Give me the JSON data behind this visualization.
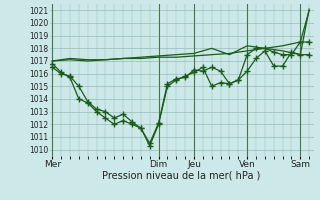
{
  "xlabel": "Pression niveau de la mer( hPa )",
  "background_color": "#cce8e8",
  "grid_color": "#99bbbb",
  "line_color": "#1a5c1a",
  "ylim": [
    1009.5,
    1021.5
  ],
  "yticks": [
    1010,
    1011,
    1012,
    1013,
    1014,
    1015,
    1016,
    1017,
    1018,
    1019,
    1020,
    1021
  ],
  "day_labels": [
    "Mer",
    "Dim",
    "Jeu",
    "Ven",
    "Sam"
  ],
  "day_positions": [
    0,
    12,
    16,
    22,
    28
  ],
  "xlim": [
    -0.3,
    29.5
  ],
  "series1_x": [
    0,
    1,
    2,
    3,
    4,
    5,
    6,
    7,
    8,
    9,
    10,
    11,
    12,
    13,
    14,
    15,
    16,
    17,
    18,
    19,
    20,
    21,
    22,
    23,
    24,
    25,
    26,
    27,
    28,
    29
  ],
  "series1_y": [
    1016.5,
    1016.0,
    1015.8,
    1015.0,
    1013.8,
    1013.2,
    1013.0,
    1012.5,
    1012.8,
    1012.2,
    1011.7,
    1010.3,
    1012.0,
    1015.0,
    1015.5,
    1015.8,
    1016.1,
    1016.5,
    1015.0,
    1015.3,
    1015.2,
    1015.5,
    1016.2,
    1017.2,
    1017.8,
    1016.6,
    1016.6,
    1017.7,
    1017.5,
    1017.5
  ],
  "series2_x": [
    0,
    2,
    4,
    6,
    8,
    10,
    12,
    14,
    16,
    18,
    20,
    22,
    24,
    26,
    28,
    29
  ],
  "series2_y": [
    1017.0,
    1017.2,
    1017.1,
    1017.1,
    1017.2,
    1017.2,
    1017.3,
    1017.3,
    1017.4,
    1017.5,
    1017.6,
    1017.8,
    1018.0,
    1018.2,
    1018.5,
    1021.0
  ],
  "series3_x": [
    0,
    2,
    4,
    6,
    8,
    10,
    12,
    14,
    16,
    18,
    20,
    22,
    24,
    26,
    28,
    29
  ],
  "series3_y": [
    1017.0,
    1017.1,
    1017.0,
    1017.1,
    1017.2,
    1017.3,
    1017.4,
    1017.5,
    1017.6,
    1018.0,
    1017.5,
    1018.2,
    1018.0,
    1017.8,
    1017.5,
    1021.1
  ],
  "series4_x": [
    0,
    1,
    2,
    3,
    4,
    5,
    6,
    7,
    8,
    9,
    10,
    11,
    12,
    13,
    14,
    15,
    16,
    17,
    18,
    19,
    20,
    21,
    22,
    23,
    24,
    25,
    26,
    27,
    28,
    29
  ],
  "series4_y": [
    1016.8,
    1016.1,
    1015.7,
    1014.0,
    1013.7,
    1013.0,
    1012.5,
    1012.0,
    1012.3,
    1012.0,
    1011.7,
    1010.5,
    1012.1,
    1015.2,
    1015.6,
    1015.7,
    1016.3,
    1016.2,
    1016.5,
    1016.2,
    1015.2,
    1015.5,
    1017.5,
    1018.0,
    1018.0,
    1017.7,
    1017.5,
    1017.5,
    1018.5,
    1018.5
  ]
}
